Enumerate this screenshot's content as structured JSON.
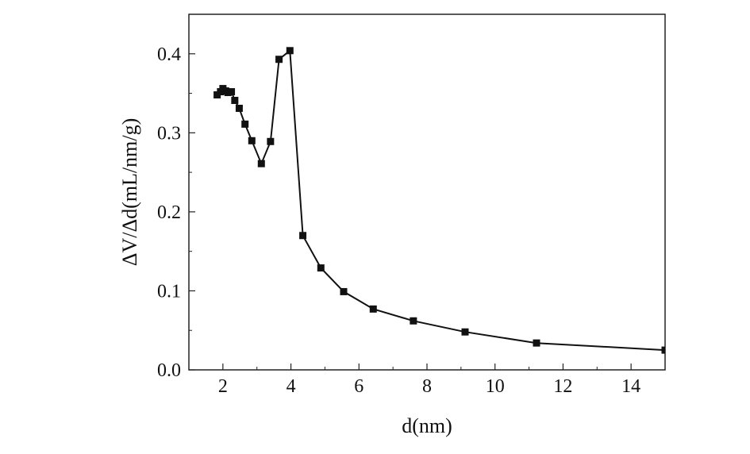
{
  "chart_data": {
    "type": "line",
    "title": "",
    "xlabel": "d(nm)",
    "ylabel": "ΔV/Δd(mL/nm/g)",
    "xlim": [
      1,
      15
    ],
    "ylim": [
      0,
      0.45
    ],
    "xticks": [
      2,
      4,
      6,
      8,
      10,
      12,
      14
    ],
    "yticks": [
      0.0,
      0.1,
      0.2,
      0.3,
      0.4
    ],
    "xtick_labels": [
      "2",
      "4",
      "6",
      "8",
      "10",
      "12",
      "14"
    ],
    "ytick_labels": [
      "0.0",
      "0.1",
      "0.2",
      "0.3",
      "0.4"
    ],
    "grid": false,
    "legend": "none",
    "colors": {
      "line": "#111111",
      "marker": "#111111",
      "frame": "#222222"
    },
    "series": [
      {
        "marker": "square",
        "x": [
          1.83,
          1.93,
          2.0,
          2.08,
          2.15,
          2.25,
          2.35,
          2.48,
          2.65,
          2.85,
          3.13,
          3.4,
          3.65,
          3.97,
          4.35,
          4.88,
          5.55,
          6.42,
          7.6,
          9.12,
          11.22,
          15.0
        ],
        "y": [
          0.348,
          0.352,
          0.356,
          0.353,
          0.351,
          0.352,
          0.341,
          0.331,
          0.311,
          0.29,
          0.261,
          0.289,
          0.393,
          0.404,
          0.17,
          0.129,
          0.099,
          0.077,
          0.062,
          0.048,
          0.034,
          0.025
        ]
      }
    ]
  }
}
